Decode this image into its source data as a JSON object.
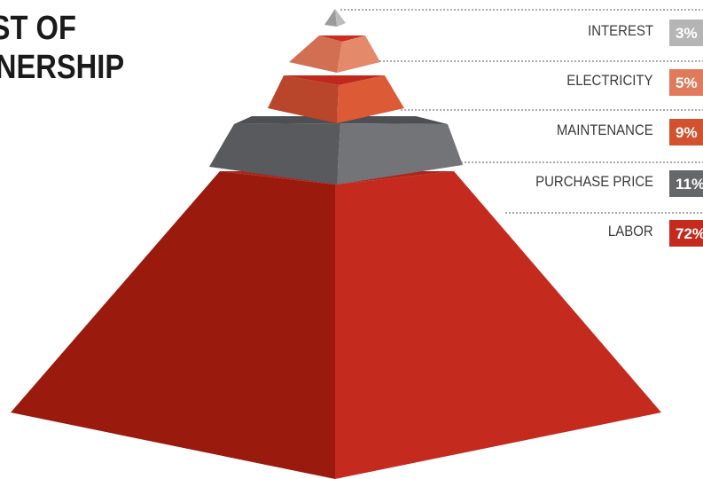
{
  "title": {
    "line1": "ST OF",
    "line2": "NERSHIP"
  },
  "tiers": [
    {
      "label": "INTEREST",
      "value": "3%",
      "color": "#b5b5b5"
    },
    {
      "label": "ELECTRICITY",
      "value": "5%",
      "color": "#e07a5a"
    },
    {
      "label": "MAINTENANCE",
      "value": "9%",
      "color": "#d2512f"
    },
    {
      "label": "PURCHASE PRICE",
      "value": "11%",
      "color": "#666769"
    },
    {
      "label": "LABOR",
      "value": "72%",
      "color": "#c42a1e"
    }
  ]
}
